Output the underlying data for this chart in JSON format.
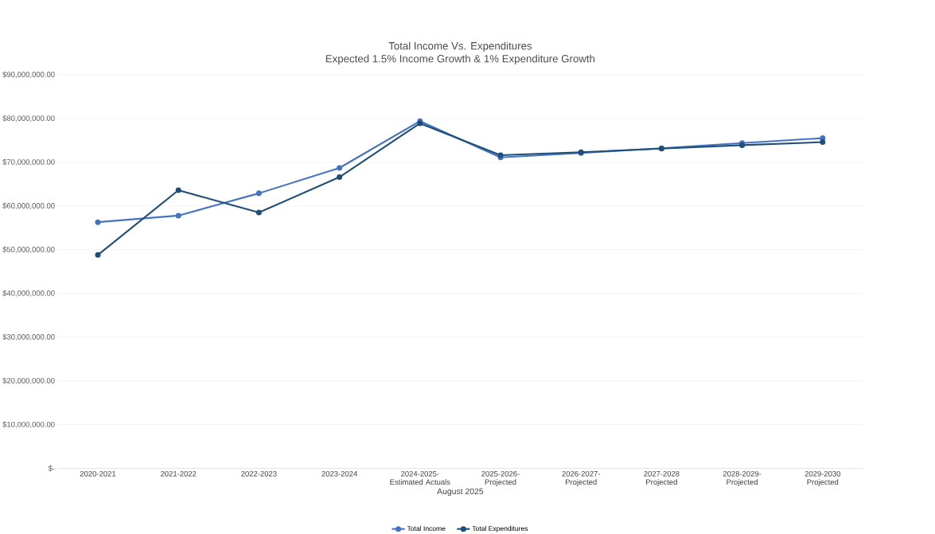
{
  "chart_data": {
    "type": "line",
    "title": "Total Income Vs. Expenditures",
    "subtitle": "Expected 1.5% Income Growth & 1% Expenditure Growth",
    "xlabel": "August 2025",
    "categories": [
      "2020-2021",
      "2021-2022",
      "2022-2023",
      "2023-2024",
      "2024-2025-Estimated Actuals",
      "2025-2026-Projected",
      "2026-2027-Projected",
      "2027-2028 Projected",
      "2028-2029-Projected",
      "2029-2030 Projected"
    ],
    "series": [
      {
        "name": "Total Income",
        "color": "#4472c4",
        "values": [
          56300000,
          57800000,
          62900000,
          68700000,
          79400000,
          71100000,
          72100000,
          73200000,
          74400000,
          75500000
        ]
      },
      {
        "name": "Total Expenditures",
        "color": "#1f4e79",
        "values": [
          48800000,
          63600000,
          58500000,
          66600000,
          78900000,
          71600000,
          72300000,
          73100000,
          73900000,
          74600000
        ]
      }
    ],
    "ylim": [
      0,
      90000000
    ],
    "yticks": [
      {
        "value": 0,
        "label": "$-"
      },
      {
        "value": 10000000,
        "label": "$10,000,000.00"
      },
      {
        "value": 20000000,
        "label": "$20,000,000.00"
      },
      {
        "value": 30000000,
        "label": "$30,000,000.00"
      },
      {
        "value": 40000000,
        "label": "$40,000,000.00"
      },
      {
        "value": 50000000,
        "label": "$50,000,000.00"
      },
      {
        "value": 60000000,
        "label": "$60,000,000.00"
      },
      {
        "value": 70000000,
        "label": "$70,000,000.00"
      },
      {
        "value": 80000000,
        "label": "$80,000,000.00"
      },
      {
        "value": 90000000,
        "label": "$90,000,000.00"
      }
    ],
    "grid": "y",
    "legend": "bottom",
    "marker": "circle",
    "line_style": "solid"
  }
}
